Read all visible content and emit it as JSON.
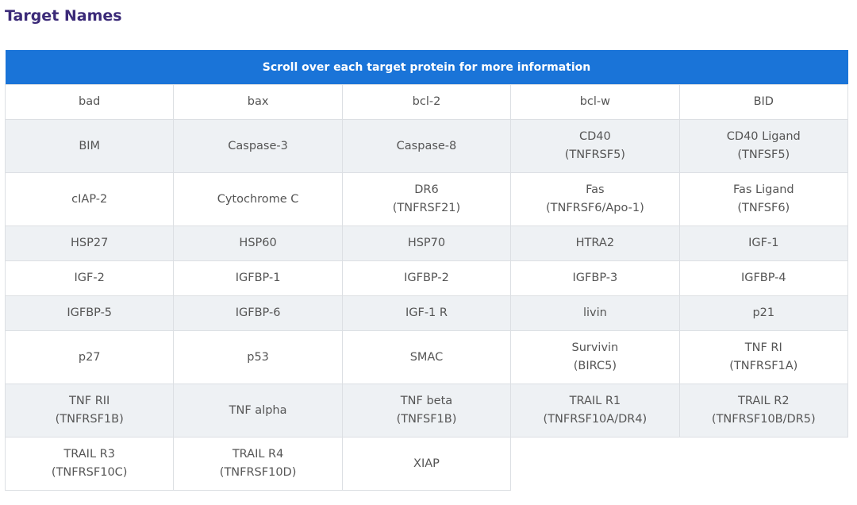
{
  "header": {
    "title": "Target Names"
  },
  "table": {
    "caption": "Scroll over each target protein for more information",
    "rows": [
      [
        [
          "bad"
        ],
        [
          "bax"
        ],
        [
          "bcl-2"
        ],
        [
          "bcl-w"
        ],
        [
          "BID"
        ]
      ],
      [
        [
          "BIM"
        ],
        [
          "Caspase-3"
        ],
        [
          "Caspase-8"
        ],
        [
          "CD40",
          "(TNFRSF5)"
        ],
        [
          "CD40 Ligand",
          "(TNFSF5)"
        ]
      ],
      [
        [
          "cIAP-2"
        ],
        [
          "Cytochrome C"
        ],
        [
          "DR6",
          "(TNFRSF21)"
        ],
        [
          "Fas",
          "(TNFRSF6/Apo-1)"
        ],
        [
          "Fas Ligand",
          "(TNFSF6)"
        ]
      ],
      [
        [
          "HSP27"
        ],
        [
          "HSP60"
        ],
        [
          "HSP70"
        ],
        [
          "HTRA2"
        ],
        [
          "IGF-1"
        ]
      ],
      [
        [
          "IGF-2"
        ],
        [
          "IGFBP-1"
        ],
        [
          "IGFBP-2"
        ],
        [
          "IGFBP-3"
        ],
        [
          "IGFBP-4"
        ]
      ],
      [
        [
          "IGFBP-5"
        ],
        [
          "IGFBP-6"
        ],
        [
          "IGF-1 R"
        ],
        [
          "livin"
        ],
        [
          "p21"
        ]
      ],
      [
        [
          "p27"
        ],
        [
          "p53"
        ],
        [
          "SMAC"
        ],
        [
          "Survivin",
          "(BIRC5)"
        ],
        [
          "TNF RI",
          "(TNFRSF1A)"
        ]
      ],
      [
        [
          "TNF RII",
          "(TNFRSF1B)"
        ],
        [
          "TNF alpha"
        ],
        [
          "TNF beta",
          "(TNFSF1B)"
        ],
        [
          "TRAIL R1",
          "(TNFRSF10A/DR4)"
        ],
        [
          "TRAIL R2",
          "(TNFRSF10B/DR5)"
        ]
      ],
      [
        [
          "TRAIL R3",
          "(TNFRSF10C)"
        ],
        [
          "TRAIL R4",
          "(TNFRSF10D)"
        ],
        [
          "XIAP"
        ]
      ]
    ]
  }
}
